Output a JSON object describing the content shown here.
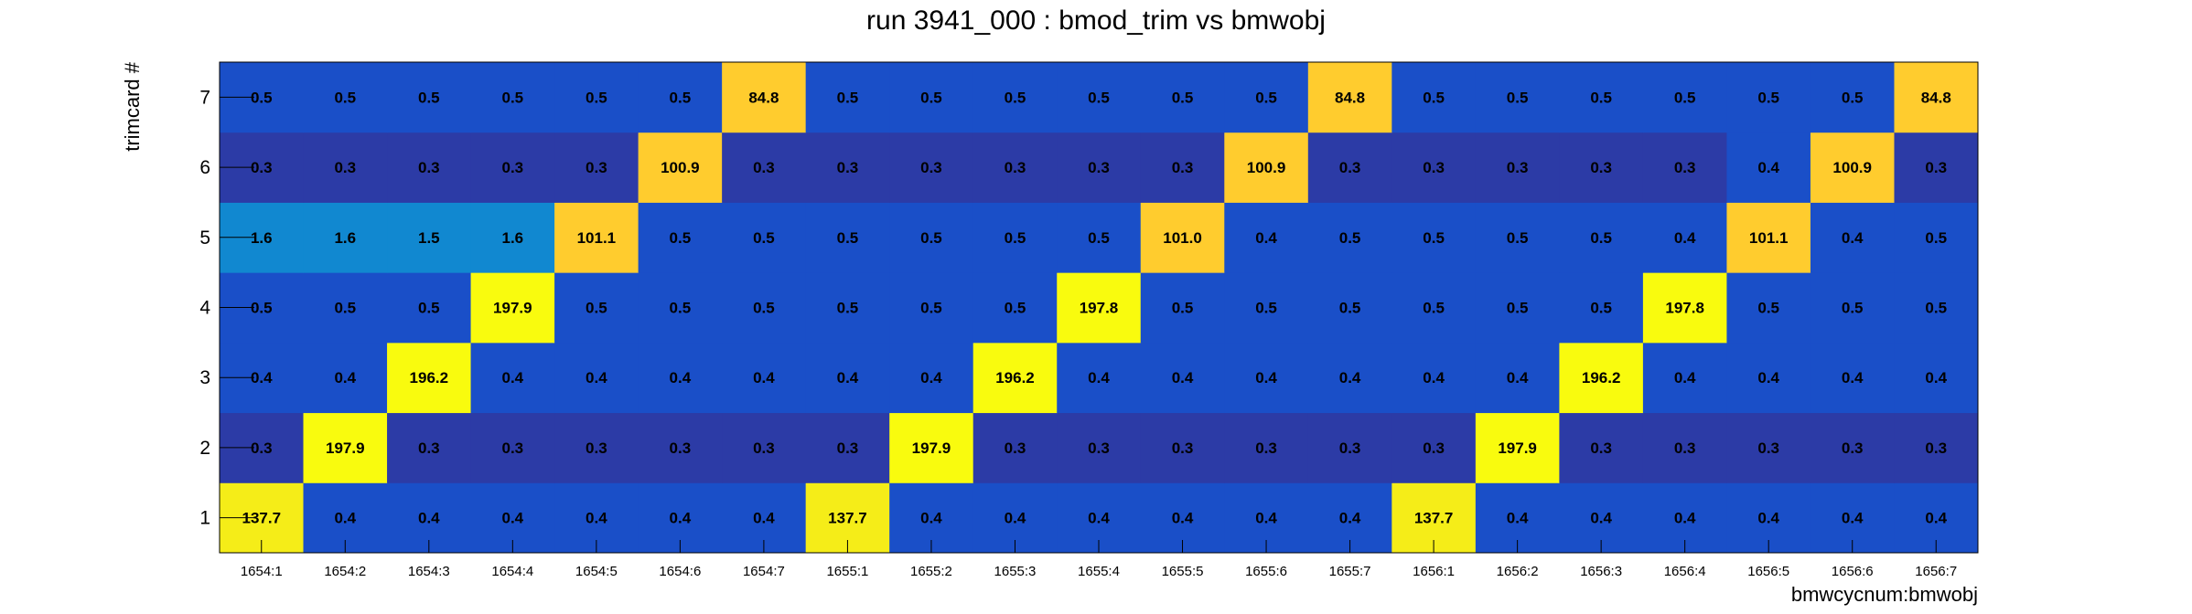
{
  "chart_data": {
    "type": "heatmap",
    "title": "run 3941_000 : bmod_trim vs bmwobj",
    "xlabel": "bmwcycnum:bmwobj",
    "ylabel": "trimcard #",
    "x_categories": [
      "1654:1",
      "1654:2",
      "1654:3",
      "1654:4",
      "1654:5",
      "1654:6",
      "1654:7",
      "1655:1",
      "1655:2",
      "1655:3",
      "1655:4",
      "1655:5",
      "1655:6",
      "1655:7",
      "1656:1",
      "1656:2",
      "1656:3",
      "1656:4",
      "1656:5",
      "1656:6",
      "1656:7"
    ],
    "y_categories": [
      "1",
      "2",
      "3",
      "4",
      "5",
      "6",
      "7"
    ],
    "values": [
      [
        137.7,
        0.4,
        0.4,
        0.4,
        0.4,
        0.4,
        0.4,
        137.7,
        0.4,
        0.4,
        0.4,
        0.4,
        0.4,
        0.4,
        137.7,
        0.4,
        0.4,
        0.4,
        0.4,
        0.4,
        0.4
      ],
      [
        0.3,
        197.9,
        0.3,
        0.3,
        0.3,
        0.3,
        0.3,
        0.3,
        197.9,
        0.3,
        0.3,
        0.3,
        0.3,
        0.3,
        0.3,
        197.9,
        0.3,
        0.3,
        0.3,
        0.3,
        0.3
      ],
      [
        0.4,
        0.4,
        196.2,
        0.4,
        0.4,
        0.4,
        0.4,
        0.4,
        0.4,
        196.2,
        0.4,
        0.4,
        0.4,
        0.4,
        0.4,
        0.4,
        196.2,
        0.4,
        0.4,
        0.4,
        0.4
      ],
      [
        0.5,
        0.5,
        0.5,
        197.9,
        0.5,
        0.5,
        0.5,
        0.5,
        0.5,
        0.5,
        197.8,
        0.5,
        0.5,
        0.5,
        0.5,
        0.5,
        0.5,
        197.8,
        0.5,
        0.5,
        0.5
      ],
      [
        1.6,
        1.6,
        1.5,
        1.6,
        101.1,
        0.5,
        0.5,
        0.5,
        0.5,
        0.5,
        0.5,
        101.0,
        0.4,
        0.5,
        0.5,
        0.5,
        0.5,
        0.4,
        101.1,
        0.4,
        0.5
      ],
      [
        0.3,
        0.3,
        0.3,
        0.3,
        0.3,
        100.9,
        0.3,
        0.3,
        0.3,
        0.3,
        0.3,
        0.3,
        100.9,
        0.3,
        0.3,
        0.3,
        0.3,
        0.3,
        0.4,
        100.9,
        0.3
      ],
      [
        0.5,
        0.5,
        0.5,
        0.5,
        0.5,
        0.5,
        84.8,
        0.5,
        0.5,
        0.5,
        0.5,
        0.5,
        0.5,
        84.8,
        0.5,
        0.5,
        0.5,
        0.5,
        0.5,
        0.5,
        84.8
      ]
    ],
    "value_format": "0.0",
    "color_map": {
      "0.3": "#2c3ba6",
      "0.4": "#1a4fc8",
      "0.5": "#1a4fc8",
      "1.5": "#1188d0",
      "1.6": "#1188d0",
      "84.8": "#ffcc2e",
      "100.9": "#ffcc2e",
      "101.0": "#ffcc2e",
      "101.1": "#ffcc2e",
      "137.7": "#f5ed18",
      "196.2": "#f9fb0e",
      "197.8": "#f9fb0e",
      "197.9": "#f9fb0e"
    },
    "grid": false,
    "legend": "none"
  }
}
